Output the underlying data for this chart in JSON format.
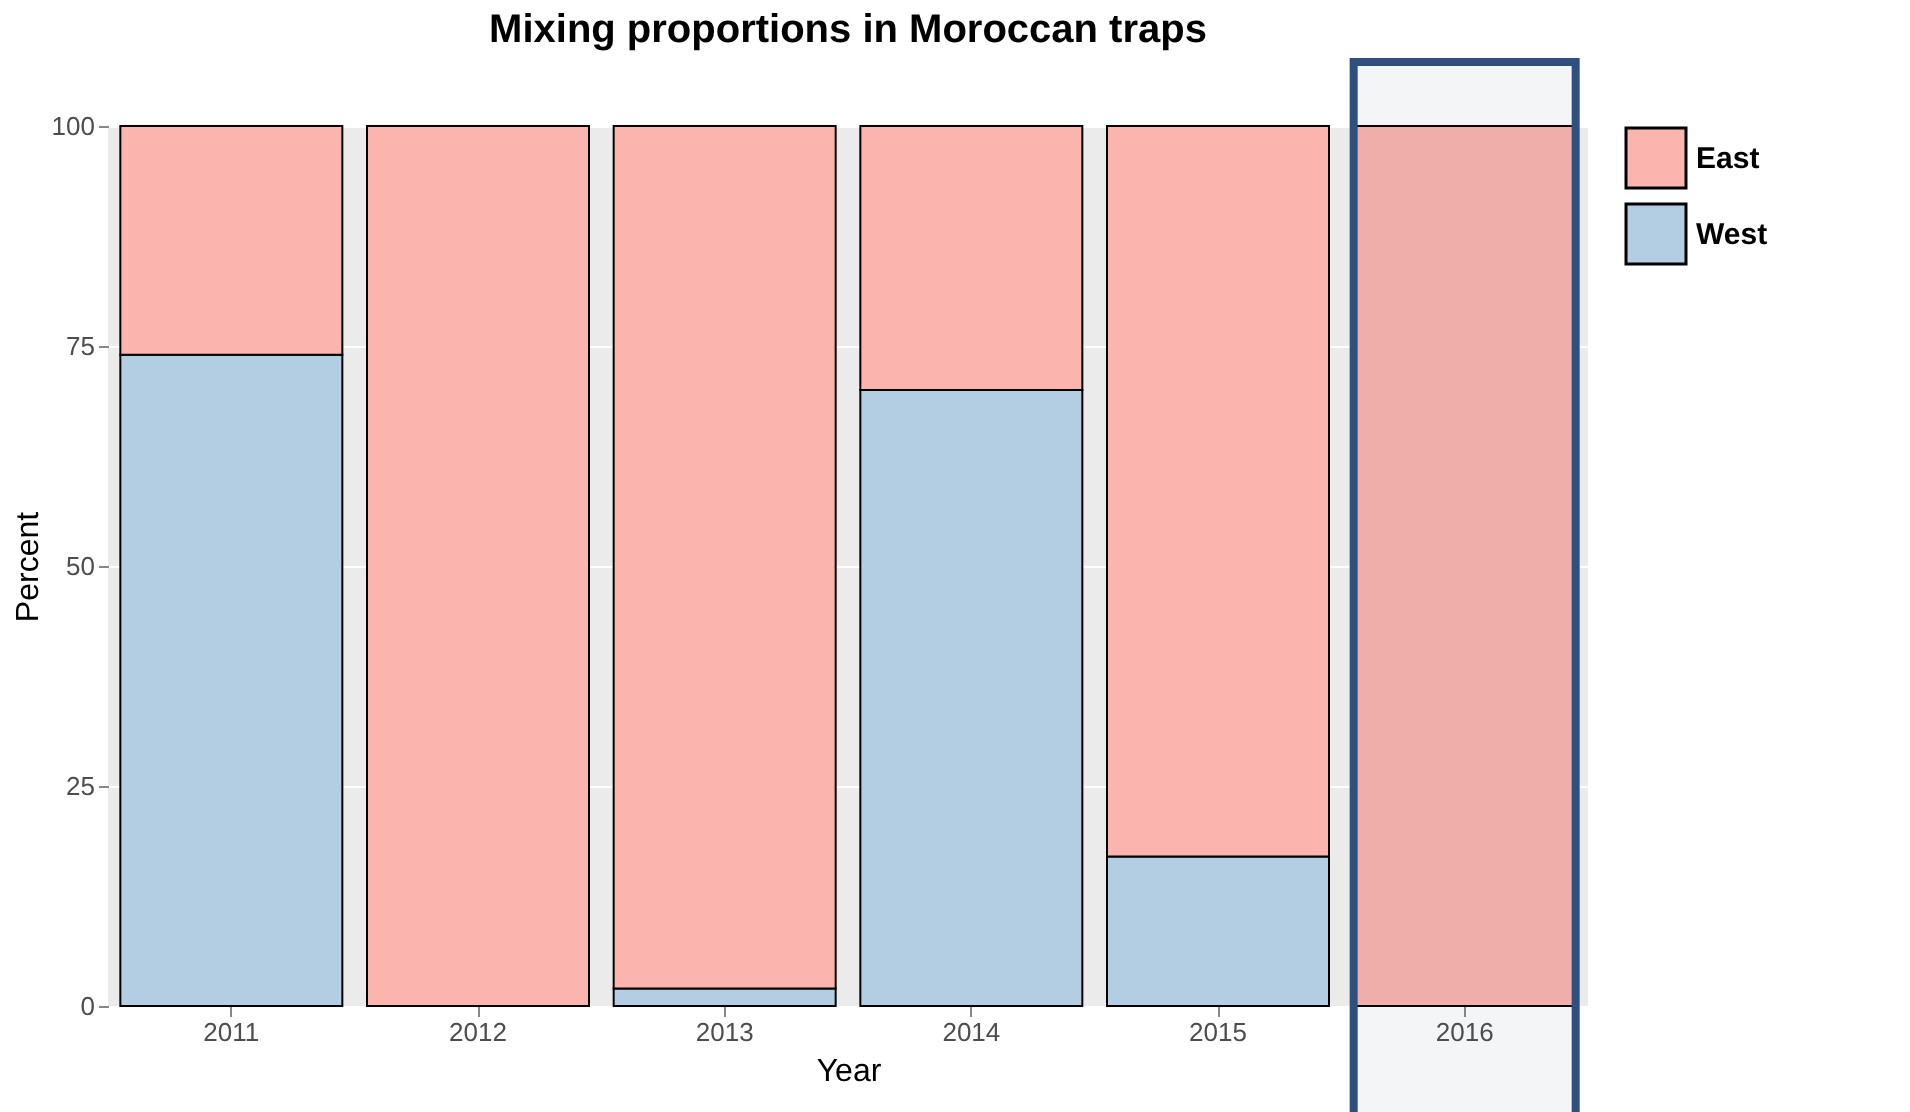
{
  "chart_data": {
    "type": "bar",
    "title": "Mixing proportions in Moroccan traps",
    "xlabel": "Year",
    "ylabel": "Percent",
    "categories": [
      "2011",
      "2012",
      "2013",
      "2014",
      "2015",
      "2016"
    ],
    "series": [
      {
        "name": "West",
        "color": "#b3cde3",
        "values": [
          74,
          0,
          2,
          70,
          17,
          0
        ]
      },
      {
        "name": "East",
        "color": "#fbb4ae",
        "values": [
          26,
          100,
          98,
          30,
          83,
          100
        ]
      }
    ],
    "stacked": true,
    "ylim": [
      0,
      100
    ],
    "yticks": [
      0,
      25,
      50,
      75,
      100
    ],
    "grid": "y",
    "legend": "right",
    "bands": [
      {
        "axis": "x",
        "from": "2016",
        "to": "2016",
        "color": "#2f4f7f"
      }
    ]
  }
}
